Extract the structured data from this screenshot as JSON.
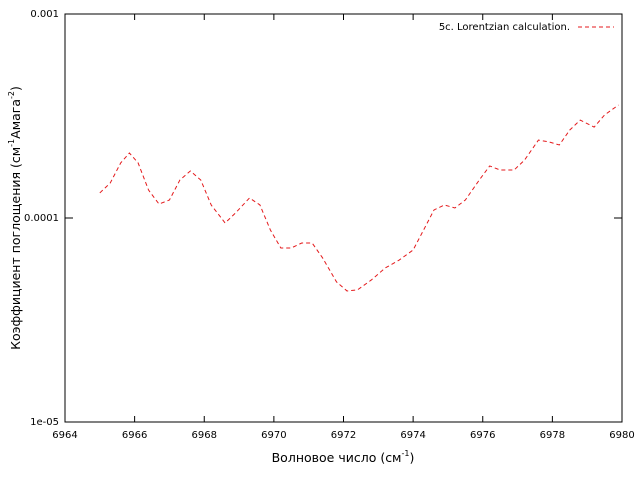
{
  "chart_data": {
    "type": "line",
    "xlabel": [
      "Волновое число (см",
      "-1",
      ")"
    ],
    "ylabel": [
      "Коэффициент поглощения (см",
      "-1",
      "Амага",
      "-2",
      ")"
    ],
    "xlim": [
      6964,
      6980
    ],
    "xticks": [
      6964,
      6966,
      6968,
      6970,
      6972,
      6974,
      6976,
      6978,
      6980
    ],
    "ylim": [
      1e-05,
      0.001
    ],
    "ylog": true,
    "yticks": [
      {
        "value": 1e-05,
        "label": "1e-05"
      },
      0.0001,
      0.001
    ],
    "legend": "top-right",
    "series": [
      {
        "name": "5c. Lorentzian calculation.",
        "color": "#e41a1c",
        "dash": true,
        "x": [
          6965.0,
          6965.3,
          6965.6,
          6965.85,
          6966.1,
          6966.4,
          6966.7,
          6967.0,
          6967.3,
          6967.6,
          6967.9,
          6968.2,
          6968.6,
          6968.9,
          6969.3,
          6969.6,
          6969.9,
          6970.2,
          6970.5,
          6970.8,
          6971.1,
          6971.4,
          6971.8,
          6972.1,
          6972.4,
          6972.8,
          6973.2,
          6973.6,
          6974.0,
          6974.3,
          6974.6,
          6974.9,
          6975.2,
          6975.5,
          6975.9,
          6976.2,
          6976.5,
          6976.9,
          6977.2,
          6977.6,
          6977.9,
          6978.2,
          6978.5,
          6978.8,
          6979.2,
          6979.5,
          6979.9
        ],
        "values": [
          0.0001327,
          0.0001485,
          0.0001862,
          0.0002083,
          0.0001862,
          0.0001371,
          0.0001171,
          0.0001225,
          0.0001535,
          0.00017,
          0.0001535,
          0.0001158,
          9.45e-05,
          0.0001059,
          0.0001254,
          0.0001158,
          8.73e-05,
          7.13e-05,
          7.13e-05,
          7.54e-05,
          7.54e-05,
          6.37e-05,
          4.86e-05,
          4.39e-05,
          4.44e-05,
          4.97e-05,
          5.69e-05,
          6.22e-05,
          6.97e-05,
          8.73e-05,
          0.0001095,
          0.0001158,
          0.000112,
          0.0001225,
          0.0001535,
          0.00018,
          0.0001718,
          0.0001718,
          0.0001923,
          0.000241,
          0.000236,
          0.000228,
          0.00027,
          0.000302,
          0.000279,
          0.00032,
          0.000358
        ]
      }
    ]
  }
}
